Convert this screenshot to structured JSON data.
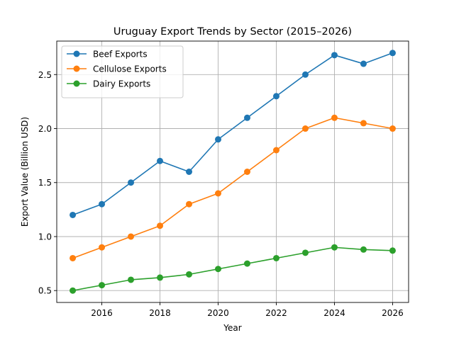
{
  "chart_data": {
    "type": "line",
    "title": "Uruguay Export Trends by Sector (2015–2026)",
    "xlabel": "Year",
    "ylabel": "Export Value (Billion USD)",
    "x": [
      2015,
      2016,
      2017,
      2018,
      2019,
      2020,
      2021,
      2022,
      2023,
      2024,
      2025,
      2026
    ],
    "xlim": [
      2014.45,
      2026.55
    ],
    "ylim": [
      0.39,
      2.81
    ],
    "xticks": [
      2016,
      2018,
      2020,
      2022,
      2024,
      2026
    ],
    "xtick_labels": [
      "2016",
      "2018",
      "2020",
      "2022",
      "2024",
      "2026"
    ],
    "yticks": [
      0.5,
      1.0,
      1.5,
      2.0,
      2.5
    ],
    "ytick_labels": [
      "0.5",
      "1.0",
      "1.5",
      "2.0",
      "2.5"
    ],
    "grid": true,
    "legend_position": "top-left",
    "series": [
      {
        "name": "Beef Exports",
        "color": "#1f77b4",
        "marker": "circle",
        "values": [
          1.2,
          1.3,
          1.5,
          1.7,
          1.6,
          1.9,
          2.1,
          2.3,
          2.5,
          2.68,
          2.6,
          2.7
        ]
      },
      {
        "name": "Cellulose Exports",
        "color": "#ff7f0e",
        "marker": "circle",
        "values": [
          0.8,
          0.9,
          1.0,
          1.1,
          1.3,
          1.4,
          1.6,
          1.8,
          2.0,
          2.1,
          2.05,
          2.0
        ]
      },
      {
        "name": "Dairy Exports",
        "color": "#2ca02c",
        "marker": "circle",
        "values": [
          0.5,
          0.55,
          0.6,
          0.62,
          0.65,
          0.7,
          0.75,
          0.8,
          0.85,
          0.9,
          0.88,
          0.87
        ]
      }
    ]
  }
}
